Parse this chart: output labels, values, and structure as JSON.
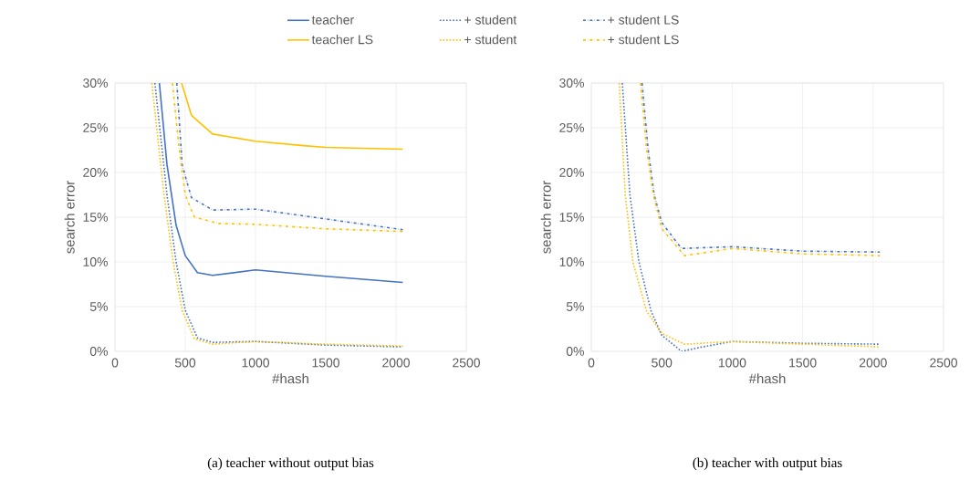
{
  "chart_data": [
    {
      "type": "line",
      "title": "(a) teacher without output bias",
      "xlabel": "#hash",
      "ylabel": "search error",
      "xlim": [
        0,
        2500
      ],
      "xticks": [
        0,
        500,
        1000,
        1500,
        2000,
        2500
      ],
      "ylim": [
        0,
        30
      ],
      "yticks": [
        {
          "value": 0,
          "label": "0%"
        },
        {
          "value": 5,
          "label": "5%"
        },
        {
          "value": 10,
          "label": "10%"
        },
        {
          "value": 15,
          "label": "15%"
        },
        {
          "value": 20,
          "label": "20%"
        },
        {
          "value": 25,
          "label": "25%"
        },
        {
          "value": 30,
          "label": "30%"
        }
      ],
      "grid": true,
      "legend": "top",
      "marker": "none",
      "series": [
        {
          "name": "teacher",
          "color": "#4472c4",
          "line_style": "solid",
          "x": [
            316,
            370,
            435,
            500,
            587,
            695,
            1000,
            1500,
            2048
          ],
          "values": [
            30,
            20.9,
            14.1,
            10.7,
            8.8,
            8.5,
            9.1,
            8.4,
            7.7
          ]
        },
        {
          "name": "+ student",
          "color": "#4472c4",
          "line_style": "dotted",
          "x": [
            284,
            370,
            435,
            500,
            587,
            695,
            1000,
            1500,
            2048
          ],
          "values": [
            30,
            17.5,
            10.0,
            4.6,
            1.5,
            1.0,
            1.1,
            0.7,
            0.5
          ]
        },
        {
          "name": "+ student LS",
          "color": "#4472c4",
          "line_style": "dashdot",
          "x": [
            440,
            478,
            500,
            544,
            695,
            1000,
            1500,
            2048
          ],
          "values": [
            30,
            20.9,
            19.6,
            17.2,
            15.8,
            15.9,
            14.8,
            13.6
          ]
        },
        {
          "name": "teacher LS",
          "color": "#ffc000",
          "line_style": "solid",
          "x": [
            474,
            544,
            695,
            1000,
            1344,
            1500,
            2048
          ],
          "values": [
            30,
            26.4,
            24.3,
            23.5,
            23.0,
            22.8,
            22.6
          ]
        },
        {
          "name": "+ student",
          "color": "#ffc000",
          "line_style": "dotted",
          "x": [
            262,
            349,
            414,
            478,
            565,
            695,
            1000,
            1500,
            2048
          ],
          "values": [
            30,
            17.5,
            10.0,
            4.6,
            1.4,
            0.8,
            1.1,
            0.8,
            0.6
          ]
        },
        {
          "name": "+ student LS",
          "color": "#ffc000",
          "line_style": "dashdot",
          "x": [
            409,
            457,
            500,
            565,
            738,
            1000,
            1500,
            2048
          ],
          "values": [
            30,
            22.6,
            17.5,
            15.0,
            14.3,
            14.2,
            13.7,
            13.4
          ]
        }
      ]
    },
    {
      "type": "line",
      "title": "(b) teacher with output bias",
      "xlabel": "#hash",
      "ylabel": "search error",
      "xlim": [
        0,
        2500
      ],
      "xticks": [
        0,
        500,
        1000,
        1500,
        2000,
        2500
      ],
      "ylim": [
        0,
        30
      ],
      "yticks": [
        {
          "value": 0,
          "label": "0%"
        },
        {
          "value": 5,
          "label": "5%"
        },
        {
          "value": 10,
          "label": "10%"
        },
        {
          "value": 15,
          "label": "15%"
        },
        {
          "value": 20,
          "label": "20%"
        },
        {
          "value": 25,
          "label": "25%"
        },
        {
          "value": 30,
          "label": "30%"
        }
      ],
      "grid": true,
      "marker": "none",
      "series": [
        {
          "color": "#4472c4",
          "line_style": "dotted",
          "x": [
            220,
            274,
            338,
            424,
            500,
            640,
            791,
            1000,
            1500,
            2048
          ],
          "values": [
            30,
            17.5,
            10.0,
            4.5,
            1.8,
            0,
            0.5,
            1.1,
            0.9,
            0.8
          ]
        },
        {
          "color": "#4472c4",
          "line_style": "dashdot",
          "x": [
            360,
            403,
            446,
            500,
            640,
            1000,
            1500,
            2048
          ],
          "values": [
            30,
            22.6,
            17.5,
            14.4,
            11.5,
            11.7,
            11.2,
            11.1
          ]
        },
        {
          "color": "#ffc000",
          "line_style": "dotted",
          "x": [
            198,
            241,
            295,
            392,
            500,
            662,
            1000,
            1500,
            2048
          ],
          "values": [
            30,
            17.5,
            10.0,
            4.5,
            2.0,
            0.8,
            1.1,
            0.8,
            0.5
          ]
        },
        {
          "color": "#ffc000",
          "line_style": "dashdot",
          "x": [
            349,
            392,
            440,
            500,
            662,
            1000,
            1500,
            2048
          ],
          "values": [
            30,
            22.6,
            17.5,
            13.7,
            10.7,
            11.5,
            10.9,
            10.7
          ]
        }
      ]
    }
  ]
}
